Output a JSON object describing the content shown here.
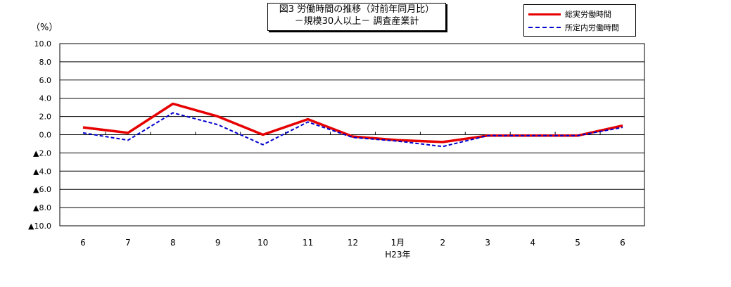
{
  "chart_data": {
    "type": "line",
    "title": [
      "図3 労働時間の推移（対前年同月比）",
      "－規模30人以上－ 調査産業計"
    ],
    "unit_label": "（%）",
    "ylim": [
      -10,
      10
    ],
    "y_ticks": [
      10,
      8,
      6,
      4,
      2,
      0,
      -2,
      -4,
      -6,
      -8,
      -10
    ],
    "y_tick_labels": [
      "10.0",
      "8.0",
      "6.0",
      "4.0",
      "2.0",
      "0.0",
      "▲2.0",
      "▲4.0",
      "▲6.0",
      "▲8.0",
      "▲10.0"
    ],
    "categories": [
      "6",
      "7",
      "8",
      "9",
      "10",
      "11",
      "12",
      "1月",
      "2",
      "3",
      "4",
      "5",
      "6"
    ],
    "x_sublabel": "H23年",
    "legend_position": "top-right",
    "grid": true,
    "series": [
      {
        "name": "総実労働時間",
        "color": "#e60000",
        "style": "solid",
        "values": [
          0.8,
          0.2,
          3.4,
          2.0,
          0.0,
          1.7,
          -0.2,
          -0.6,
          -0.8,
          -0.1,
          -0.1,
          -0.1,
          1.0
        ]
      },
      {
        "name": "所定内労働時間",
        "color": "#0000cc",
        "style": "dashed",
        "values": [
          0.2,
          -0.6,
          2.4,
          1.1,
          -1.1,
          1.4,
          -0.3,
          -0.7,
          -1.3,
          -0.1,
          -0.1,
          -0.1,
          0.8
        ]
      }
    ]
  }
}
